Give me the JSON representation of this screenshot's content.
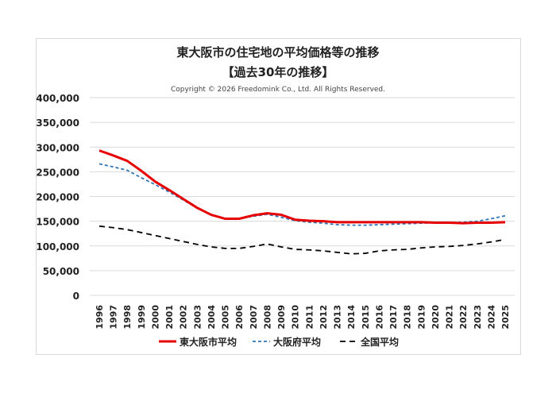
{
  "chart_data": {
    "type": "line",
    "title": "東大阪市の住宅地の平均価格等の推移",
    "subtitle": "【過去30年の推移】",
    "copyright": "Copyright © 2026 Freedomink Co., Ltd. All Rights Reserved.",
    "xlabel": "",
    "ylabel": "",
    "ylim": [
      0,
      400000
    ],
    "yticks": [
      "0",
      "50,000",
      "100,000",
      "150,000",
      "200,000",
      "250,000",
      "300,000",
      "350,000",
      "400,000"
    ],
    "grid": true,
    "legend": "bottom",
    "x": [
      "1996",
      "1997",
      "1998",
      "1999",
      "2000",
      "2001",
      "2002",
      "2003",
      "2004",
      "2005",
      "2006",
      "2007",
      "2008",
      "2009",
      "2010",
      "2011",
      "2012",
      "2013",
      "2014",
      "2015",
      "2016",
      "2017",
      "2018",
      "2019",
      "2020",
      "2021",
      "2022",
      "2023",
      "2024",
      "2025"
    ],
    "series": [
      {
        "name": "東大阪市平均",
        "color": "#e60000",
        "style": "solid",
        "values": [
          293000,
          283000,
          272000,
          252000,
          230000,
          213000,
          195000,
          177000,
          163000,
          155000,
          155000,
          162000,
          166000,
          163000,
          153000,
          151000,
          150000,
          148000,
          148000,
          148000,
          148000,
          148000,
          148000,
          148000,
          147000,
          147000,
          146000,
          147000,
          147000,
          148000
        ]
      },
      {
        "name": "大阪府平均",
        "color": "#2e75b6",
        "style": "dashed",
        "values": [
          266000,
          260000,
          253000,
          238000,
          224000,
          209000,
          193000,
          176000,
          162000,
          155000,
          155000,
          160000,
          164000,
          158000,
          151000,
          148000,
          146000,
          143000,
          142000,
          142000,
          143000,
          144000,
          145000,
          146000,
          147000,
          147000,
          148000,
          150000,
          155000,
          161000
        ]
      },
      {
        "name": "全国平均",
        "color": "#000000",
        "style": "dashed",
        "values": [
          140000,
          137000,
          133000,
          127000,
          121000,
          115000,
          109000,
          103000,
          98000,
          95000,
          95000,
          99000,
          104000,
          98000,
          93000,
          92000,
          90000,
          87000,
          84000,
          85000,
          90000,
          92000,
          93000,
          96000,
          98000,
          99000,
          101000,
          104000,
          108000,
          113000
        ]
      }
    ]
  }
}
